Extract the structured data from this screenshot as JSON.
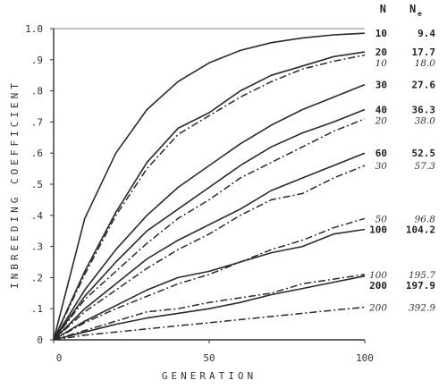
{
  "chart_data": {
    "type": "line",
    "xlabel": "GENERATION",
    "ylabel": "INBREEDING COEFFICIENT",
    "xlim": [
      0,
      100
    ],
    "ylim": [
      0,
      1.0
    ],
    "x_ticks": [
      "0",
      "50",
      "100"
    ],
    "y_ticks": [
      "0",
      ".1",
      ".2",
      ".3",
      ".4",
      ".5",
      ".6",
      ".7",
      ".8",
      ".9",
      "1.0"
    ],
    "legend_headers": {
      "n": "N",
      "ne": "N",
      "ne_sub": "e"
    },
    "x": [
      0,
      10,
      20,
      30,
      40,
      50,
      60,
      70,
      80,
      90,
      100
    ],
    "series": [
      {
        "style": "solid",
        "n": "10",
        "ne": "9.4",
        "values": [
          0,
          0.39,
          0.6,
          0.74,
          0.83,
          0.89,
          0.93,
          0.955,
          0.97,
          0.98,
          0.985
        ]
      },
      {
        "style": "solid",
        "n": "20",
        "ne": "17.7",
        "values": [
          0,
          0.22,
          0.41,
          0.57,
          0.68,
          0.73,
          0.8,
          0.85,
          0.88,
          0.91,
          0.925
        ]
      },
      {
        "style": "dash-dot",
        "n": "10",
        "ne": "18.0",
        "values": [
          0,
          0.21,
          0.4,
          0.55,
          0.66,
          0.72,
          0.78,
          0.83,
          0.87,
          0.895,
          0.915
        ]
      },
      {
        "style": "solid",
        "n": "30",
        "ne": "27.6",
        "values": [
          0,
          0.16,
          0.29,
          0.4,
          0.49,
          0.56,
          0.63,
          0.69,
          0.74,
          0.78,
          0.82
        ]
      },
      {
        "style": "solid",
        "n": "40",
        "ne": "36.3",
        "values": [
          0,
          0.14,
          0.25,
          0.35,
          0.42,
          0.49,
          0.56,
          0.62,
          0.665,
          0.7,
          0.74
        ]
      },
      {
        "style": "dash-dot",
        "n": "20",
        "ne": "38.0",
        "values": [
          0,
          0.13,
          0.22,
          0.31,
          0.39,
          0.45,
          0.52,
          0.57,
          0.62,
          0.67,
          0.71
        ]
      },
      {
        "style": "solid",
        "n": "60",
        "ne": "52.5",
        "values": [
          0,
          0.1,
          0.18,
          0.26,
          0.32,
          0.37,
          0.42,
          0.48,
          0.52,
          0.56,
          0.6
        ]
      },
      {
        "style": "dash-dot",
        "n": "30",
        "ne": "57.3",
        "values": [
          0,
          0.09,
          0.16,
          0.23,
          0.29,
          0.34,
          0.4,
          0.45,
          0.47,
          0.52,
          0.56
        ]
      },
      {
        "style": "dash-dot",
        "n": "50",
        "ne": "96.8",
        "values": [
          0,
          0.055,
          0.1,
          0.14,
          0.18,
          0.21,
          0.25,
          0.29,
          0.32,
          0.36,
          0.39
        ]
      },
      {
        "style": "solid",
        "n": "100",
        "ne": "104.2",
        "values": [
          0,
          0.06,
          0.11,
          0.16,
          0.2,
          0.22,
          0.25,
          0.28,
          0.3,
          0.34,
          0.355
        ]
      },
      {
        "style": "dash-dot",
        "n": "100",
        "ne": "195.7",
        "values": [
          0,
          0.03,
          0.06,
          0.09,
          0.1,
          0.12,
          0.135,
          0.15,
          0.18,
          0.195,
          0.21
        ]
      },
      {
        "style": "solid",
        "n": "200",
        "ne": "197.9",
        "values": [
          0,
          0.025,
          0.05,
          0.07,
          0.085,
          0.1,
          0.12,
          0.145,
          0.165,
          0.185,
          0.205
        ]
      },
      {
        "style": "dash-dot",
        "n": "200",
        "ne": "392.9",
        "values": [
          0,
          0.015,
          0.025,
          0.035,
          0.045,
          0.055,
          0.065,
          0.075,
          0.085,
          0.095,
          0.105
        ]
      }
    ]
  }
}
